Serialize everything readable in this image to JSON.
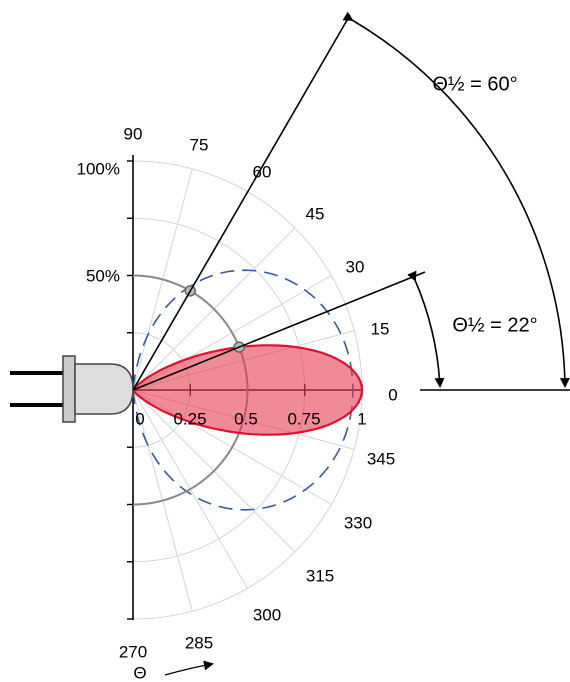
{
  "angle_labels": [
    "90",
    "75",
    "60",
    "45",
    "30",
    "15",
    "0",
    "345",
    "330",
    "315",
    "300",
    "285",
    "270"
  ],
  "radial_labels": [
    "0",
    "0.25",
    "0.5",
    "0.75",
    "1"
  ],
  "percent_labels": [
    "100%",
    "50%"
  ],
  "annotations": {
    "half_angle_wide": "Θ½ = 60°",
    "half_angle_narrow": "Θ½ = 22°",
    "theta": "Θ"
  }
}
